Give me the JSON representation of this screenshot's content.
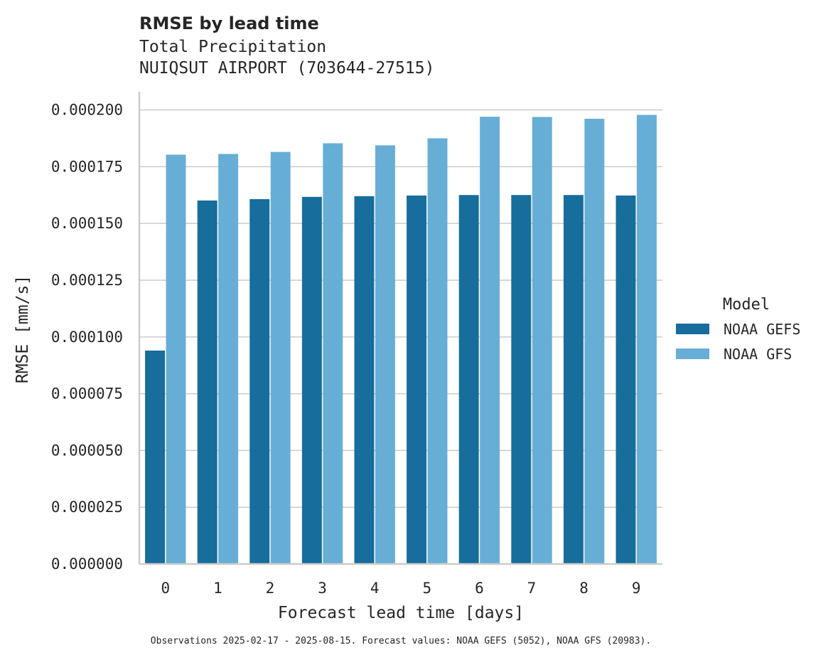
{
  "chart_data": {
    "type": "bar",
    "title": "RMSE by lead time",
    "subtitle_lines": [
      "Total Precipitation",
      "NUIQSUT AIRPORT (703644-27515)"
    ],
    "xlabel": "Forecast lead time [days]",
    "ylabel": "RMSE [mm/s]",
    "categories": [
      "0",
      "1",
      "2",
      "3",
      "4",
      "5",
      "6",
      "7",
      "8",
      "9"
    ],
    "ylim": [
      0,
      0.000208
    ],
    "yticks": [
      0.0,
      2.5e-05,
      5e-05,
      7.5e-05,
      0.0001,
      0.000125,
      0.00015,
      0.000175,
      0.0002
    ],
    "ytick_labels": [
      "0.000000",
      "0.000025",
      "0.000050",
      "0.000075",
      "0.000100",
      "0.000125",
      "0.000150",
      "0.000175",
      "0.000200"
    ],
    "grid": "horizontal",
    "legend": {
      "title": "Model",
      "placement": "right"
    },
    "series": [
      {
        "name": "NOAA GEFS",
        "color": "#176d9c",
        "values": [
          9.4e-05,
          0.0001601,
          0.0001607,
          0.0001617,
          0.000162,
          0.0001623,
          0.0001625,
          0.0001625,
          0.0001625,
          0.0001623
        ]
      },
      {
        "name": "NOAA GFS",
        "color": "#67aed7",
        "values": [
          0.0001803,
          0.0001806,
          0.0001815,
          0.0001853,
          0.0001844,
          0.0001875,
          0.000197,
          0.0001969,
          0.0001961,
          0.0001978
        ]
      }
    ],
    "footnote": "Observations 2025-02-17 - 2025-08-15. Forecast values: NOAA GEFS (5052), NOAA GFS (20983)."
  }
}
